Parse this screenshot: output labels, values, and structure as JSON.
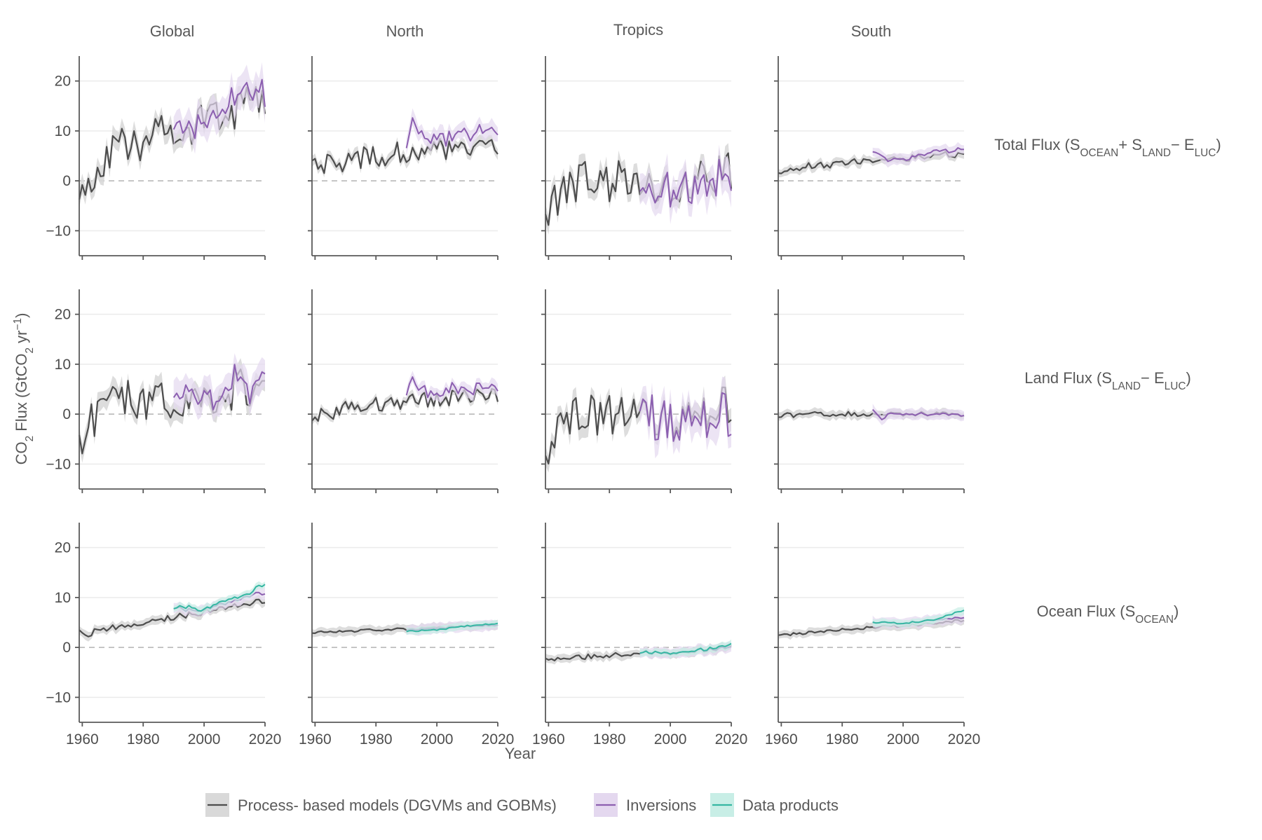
{
  "chart_data": {
    "type": "line",
    "layout": "facet-grid",
    "columns": [
      "Global",
      "North",
      "Tropics",
      "South"
    ],
    "rows": [
      {
        "id": "total",
        "label_parts": [
          {
            "t": "Total Flux (S"
          },
          {
            "t": "OCEAN",
            "sub": true
          },
          {
            "t": "+ S"
          },
          {
            "t": "LAND",
            "sub": true
          },
          {
            "t": "− E"
          },
          {
            "t": "LUC",
            "sub": true
          },
          {
            "t": ")"
          }
        ]
      },
      {
        "id": "land",
        "label_parts": [
          {
            "t": "Land Flux (S"
          },
          {
            "t": "LAND",
            "sub": true
          },
          {
            "t": "− E"
          },
          {
            "t": "LUC",
            "sub": true
          },
          {
            "t": ")"
          }
        ]
      },
      {
        "id": "ocean",
        "label_parts": [
          {
            "t": "Ocean Flux (S"
          },
          {
            "t": "OCEAN",
            "sub": true
          },
          {
            "t": ")"
          }
        ]
      }
    ],
    "xlabel": "Year",
    "ylabel_parts": [
      {
        "t": "CO"
      },
      {
        "t": "2",
        "sub": true
      },
      {
        "t": " Flux (GtCO"
      },
      {
        "t": "2",
        "sub": true
      },
      {
        "t": " yr"
      },
      {
        "t": "−1",
        "sup": true
      },
      {
        "t": ")"
      }
    ],
    "xlim": [
      1959,
      2020
    ],
    "ylim": [
      -15,
      25
    ],
    "xticks": [
      1960,
      1980,
      2000,
      2020
    ],
    "xtick_labels": [
      "1960",
      "1980",
      "2000",
      "2020"
    ],
    "yticks": [
      -10,
      0,
      10,
      20
    ],
    "ytick_labels": [
      "−10",
      "0",
      "10",
      "20"
    ],
    "zero_line": "dashed",
    "grid": true,
    "legend_position": "bottom",
    "colors": {
      "Process- based models (DGVMs and GOBMs)": {
        "line": "#4d4d4d",
        "band": "#d9d9d9"
      },
      "Inversions": {
        "line": "#8c5fb0",
        "band": "#e4d8ef"
      },
      "Data products": {
        "line": "#35b6a2",
        "band": "#c8eee6"
      }
    },
    "legend": [
      {
        "name": "Process- based models (DGVMs and GOBMs)",
        "key": "models"
      },
      {
        "name": "Inversions",
        "key": "inversions"
      },
      {
        "name": "Data products",
        "key": "products"
      }
    ],
    "series_spec": {
      "models": {
        "start": 1959,
        "end": 2020,
        "anchors": {
          "total": {
            "Global": [
              [
                1959,
                -2
              ],
              [
                1960,
                -1
              ],
              [
                1961,
                -5
              ],
              [
                1963,
                1
              ],
              [
                1966,
                4
              ],
              [
                1970,
                6
              ],
              [
                1975,
                8
              ],
              [
                1980,
                8
              ],
              [
                1985,
                9
              ],
              [
                1990,
                10
              ],
              [
                1995,
                11
              ],
              [
                2000,
                12
              ],
              [
                2005,
                13
              ],
              [
                2010,
                14
              ],
              [
                2015,
                15
              ],
              [
                2020,
                15
              ]
            ],
            "North": [
              [
                1959,
                2.5
              ],
              [
                1965,
                3.5
              ],
              [
                1970,
                4
              ],
              [
                1980,
                5
              ],
              [
                1990,
                5.8
              ],
              [
                2000,
                6.3
              ],
              [
                2010,
                7
              ],
              [
                2020,
                7.5
              ]
            ],
            "Tropics": [
              [
                1959,
                -7
              ],
              [
                1960,
                -8
              ],
              [
                1962,
                -4
              ],
              [
                1966,
                -1
              ],
              [
                1970,
                0
              ],
              [
                1980,
                0
              ],
              [
                1990,
                0
              ],
              [
                2000,
                -1
              ],
              [
                2010,
                1
              ],
              [
                2020,
                1.5
              ]
            ],
            "South": [
              [
                1959,
                2
              ],
              [
                1970,
                3
              ],
              [
                1980,
                3.5
              ],
              [
                1990,
                4
              ],
              [
                2000,
                4.5
              ],
              [
                2010,
                5
              ],
              [
                2020,
                5.5
              ]
            ]
          },
          "land": {
            "Global": [
              [
                1959,
                -5
              ],
              [
                1960,
                -6
              ],
              [
                1961,
                -7
              ],
              [
                1963,
                -1
              ],
              [
                1966,
                0
              ],
              [
                1970,
                2
              ],
              [
                1975,
                3
              ],
              [
                1980,
                2
              ],
              [
                1985,
                2
              ],
              [
                1990,
                3
              ],
              [
                1995,
                3
              ],
              [
                2000,
                3
              ],
              [
                2005,
                4
              ],
              [
                2010,
                5
              ],
              [
                2015,
                5
              ],
              [
                2020,
                5
              ]
            ],
            "North": [
              [
                1959,
                -0.5
              ],
              [
                1965,
                0.5
              ],
              [
                1970,
                1
              ],
              [
                1980,
                2
              ],
              [
                1990,
                2.5
              ],
              [
                2000,
                3
              ],
              [
                2010,
                3.5
              ],
              [
                2020,
                3.5
              ]
            ],
            "Tropics": [
              [
                1959,
                -5
              ],
              [
                1960,
                -6
              ],
              [
                1962,
                -3
              ],
              [
                1966,
                -1
              ],
              [
                1970,
                0
              ],
              [
                1980,
                0
              ],
              [
                1990,
                0
              ],
              [
                2000,
                -1
              ],
              [
                2010,
                1
              ],
              [
                2020,
                1.5
              ]
            ],
            "South": [
              [
                1959,
                -0.3
              ],
              [
                1970,
                0
              ],
              [
                1980,
                0
              ],
              [
                1990,
                0.1
              ],
              [
                2000,
                0
              ],
              [
                2010,
                0.1
              ],
              [
                2020,
                0
              ]
            ]
          },
          "ocean": {
            "Global": [
              [
                1959,
                3
              ],
              [
                1962,
                2.5
              ],
              [
                1965,
                3.5
              ],
              [
                1970,
                4
              ],
              [
                1980,
                5
              ],
              [
                1990,
                6
              ],
              [
                2000,
                7
              ],
              [
                2010,
                8.5
              ],
              [
                2020,
                9.5
              ]
            ],
            "North": [
              [
                1959,
                3
              ],
              [
                1970,
                3.2
              ],
              [
                1980,
                3.5
              ],
              [
                1990,
                3.7
              ],
              [
                2000,
                4
              ],
              [
                2010,
                4.2
              ],
              [
                2020,
                4.5
              ]
            ],
            "Tropics": [
              [
                1959,
                -1.8
              ],
              [
                1962,
                -2.5
              ],
              [
                1970,
                -2
              ],
              [
                1980,
                -1.5
              ],
              [
                1990,
                -1
              ],
              [
                2000,
                -1
              ],
              [
                2010,
                -0.5
              ],
              [
                2020,
                0
              ]
            ],
            "South": [
              [
                1959,
                2.5
              ],
              [
                1970,
                3
              ],
              [
                1980,
                3.5
              ],
              [
                1990,
                4
              ],
              [
                2000,
                4.3
              ],
              [
                2010,
                4.8
              ],
              [
                2020,
                5.5
              ]
            ]
          }
        }
      },
      "inversions": {
        "start": 1990,
        "end": 2020,
        "anchors": {
          "total": {
            "Global": [
              [
                1990,
                12
              ],
              [
                1995,
                11
              ],
              [
                2000,
                11
              ],
              [
                2005,
                13
              ],
              [
                2010,
                17
              ],
              [
                2015,
                16
              ],
              [
                2020,
                17
              ]
            ],
            "North": [
              [
                1990,
                8
              ],
              [
                1992,
                12
              ],
              [
                1995,
                9
              ],
              [
                2000,
                8
              ],
              [
                2005,
                9
              ],
              [
                2010,
                10
              ],
              [
                2015,
                10
              ],
              [
                2020,
                10
              ]
            ],
            "Tropics": [
              [
                1990,
                0
              ],
              [
                1995,
                -1
              ],
              [
                2000,
                -1
              ],
              [
                2005,
                -1
              ],
              [
                2010,
                0
              ],
              [
                2015,
                0
              ],
              [
                2020,
                -1
              ]
            ],
            "South": [
              [
                1990,
                6
              ],
              [
                1993,
                5
              ],
              [
                1995,
                4
              ],
              [
                2000,
                4.5
              ],
              [
                2005,
                5
              ],
              [
                2010,
                6
              ],
              [
                2015,
                6
              ],
              [
                2020,
                6.5
              ]
            ]
          },
          "land": {
            "Global": [
              [
                1990,
                5
              ],
              [
                1995,
                4
              ],
              [
                2000,
                3
              ],
              [
                2005,
                4
              ],
              [
                2010,
                7
              ],
              [
                2015,
                6
              ],
              [
                2020,
                6
              ]
            ],
            "North": [
              [
                1990,
                4
              ],
              [
                1992,
                7
              ],
              [
                1995,
                5
              ],
              [
                2000,
                4
              ],
              [
                2005,
                5
              ],
              [
                2010,
                5
              ],
              [
                2015,
                5
              ],
              [
                2020,
                5
              ]
            ],
            "Tropics": [
              [
                1990,
                0
              ],
              [
                1995,
                -1
              ],
              [
                2000,
                -1
              ],
              [
                2005,
                -1
              ],
              [
                2010,
                0
              ],
              [
                2015,
                0
              ],
              [
                2020,
                -1
              ]
            ],
            "South": [
              [
                1990,
                1
              ],
              [
                1993,
                -1
              ],
              [
                1995,
                0
              ],
              [
                2000,
                0
              ],
              [
                2005,
                0
              ],
              [
                2010,
                0
              ],
              [
                2020,
                0
              ]
            ]
          },
          "ocean": {
            "Global": [
              [
                1990,
                8
              ],
              [
                1995,
                7.5
              ],
              [
                2000,
                7.5
              ],
              [
                2005,
                8.5
              ],
              [
                2010,
                9.5
              ],
              [
                2015,
                10.5
              ],
              [
                2020,
                11
              ]
            ],
            "North": [
              [
                1990,
                3.5
              ],
              [
                2000,
                3.8
              ],
              [
                2010,
                4.2
              ],
              [
                2020,
                4.5
              ]
            ],
            "Tropics": [
              [
                1990,
                -1
              ],
              [
                2000,
                -1
              ],
              [
                2010,
                -0.5
              ],
              [
                2020,
                0
              ]
            ],
            "South": [
              [
                1990,
                5
              ],
              [
                2000,
                4.8
              ],
              [
                2010,
                5.5
              ],
              [
                2020,
                6
              ]
            ]
          }
        }
      },
      "products": {
        "start": 1990,
        "end": 2020,
        "anchors": {
          "ocean": {
            "Global": [
              [
                1990,
                8
              ],
              [
                1995,
                8
              ],
              [
                2000,
                7.5
              ],
              [
                2005,
                9
              ],
              [
                2010,
                10
              ],
              [
                2015,
                11
              ],
              [
                2020,
                13
              ]
            ],
            "North": [
              [
                1990,
                3.3
              ],
              [
                2000,
                3.5
              ],
              [
                2010,
                4.3
              ],
              [
                2020,
                4.8
              ]
            ],
            "Tropics": [
              [
                1990,
                -1
              ],
              [
                2000,
                -1
              ],
              [
                2010,
                -0.5
              ],
              [
                2020,
                0.5
              ]
            ],
            "South": [
              [
                1990,
                5
              ],
              [
                2000,
                4.8
              ],
              [
                2010,
                5.5
              ],
              [
                2020,
                7.5
              ]
            ]
          }
        }
      }
    }
  }
}
